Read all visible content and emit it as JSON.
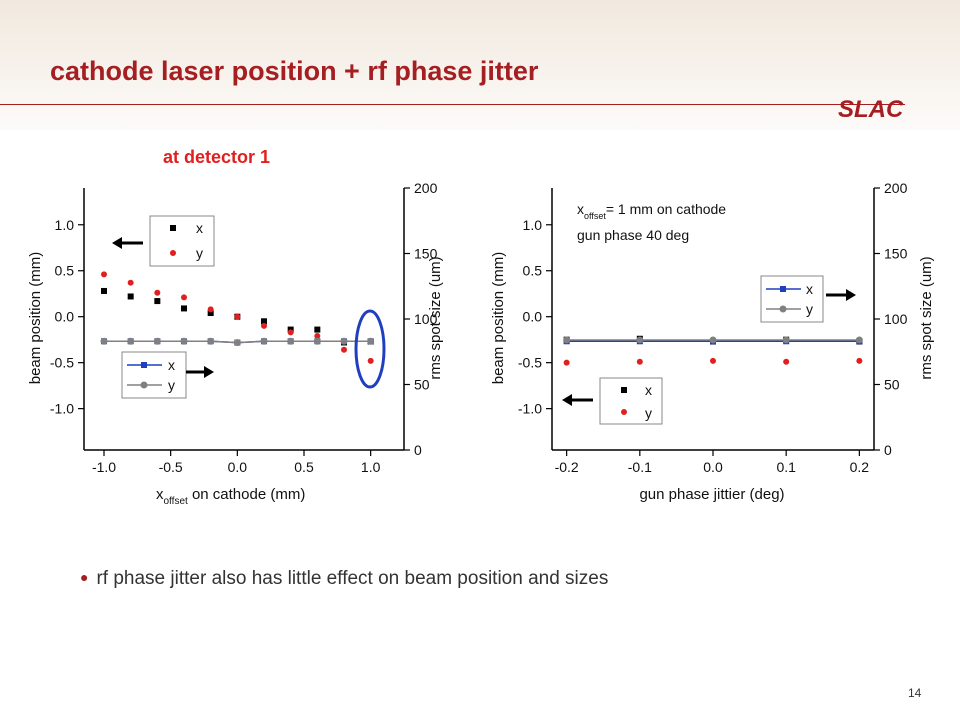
{
  "slide": {
    "title": "cathode laser position + rf phase jitter",
    "subtitle": "at detector 1",
    "logo_text": "SLAC",
    "bullet": "rf phase jitter also has little effect on beam position and sizes",
    "page_number": "14",
    "colors": {
      "title": "#a51e22",
      "subtitle": "#e02020",
      "x_series": "#000000",
      "y_series": "#e02020",
      "size_x": "#1f3fbf",
      "size_y": "#808080",
      "highlight": "#1f3fbf"
    }
  },
  "chart_data": [
    {
      "type": "scatter",
      "xlabel_main": "x",
      "xlabel_sub": "offset",
      "xlabel_rest": " on cathode (mm)",
      "ylabel": "beam position (mm)",
      "y2label": "rms spot size (um)",
      "xlim": [
        -1.15,
        1.25
      ],
      "ylim": [
        -1.45,
        1.4
      ],
      "y2lim": [
        0,
        200
      ],
      "xticks": [
        -1.0,
        -0.5,
        0.0,
        0.5,
        1.0
      ],
      "xtick_labels": [
        "-1.0",
        "-0.5",
        "0.0",
        "0.5",
        "1.0"
      ],
      "yticks": [
        -1.0,
        -0.5,
        0.0,
        0.5,
        1.0
      ],
      "ytick_labels": [
        "-1.0",
        "-0.5",
        "0.0",
        "0.5",
        "1.0"
      ],
      "y2ticks": [
        0,
        50,
        100,
        150,
        200
      ],
      "y2tick_labels": [
        "0",
        "50",
        "100",
        "150",
        "200"
      ],
      "x": [
        -1.0,
        -0.8,
        -0.6,
        -0.4,
        -0.2,
        0.0,
        0.2,
        0.4,
        0.6,
        0.8,
        1.0
      ],
      "series": [
        {
          "name": "x",
          "axis": "left",
          "marker": "square",
          "values": [
            0.28,
            0.22,
            0.17,
            0.09,
            0.04,
            0.0,
            -0.05,
            -0.14,
            -0.14,
            -0.28,
            -0.27
          ]
        },
        {
          "name": "y",
          "axis": "left",
          "marker": "circle",
          "values": [
            0.46,
            0.37,
            0.26,
            0.21,
            0.08,
            0.0,
            -0.1,
            -0.17,
            -0.21,
            -0.36,
            -0.48
          ]
        },
        {
          "name": "x",
          "axis": "right",
          "marker": "square-line",
          "values": [
            83,
            83,
            83,
            83,
            83,
            82,
            83,
            83,
            83,
            83,
            83
          ]
        },
        {
          "name": "y",
          "axis": "right",
          "marker": "circle-line",
          "values": [
            83,
            83,
            83,
            83,
            83,
            82,
            83,
            83,
            83,
            83,
            83
          ]
        }
      ],
      "legend_left_axis": [
        "x",
        "y"
      ],
      "legend_right_axis": [
        "x",
        "y"
      ],
      "highlight_x": 1.0
    },
    {
      "type": "scatter",
      "xlabel": "gun phase jittier (deg)",
      "ylabel": "beam position (mm)",
      "y2label": "rms spot size (um)",
      "xlim": [
        -0.22,
        0.22
      ],
      "ylim": [
        -1.45,
        1.4
      ],
      "y2lim": [
        0,
        200
      ],
      "xticks": [
        -0.2,
        -0.1,
        0.0,
        0.1,
        0.2
      ],
      "xtick_labels": [
        "-0.2",
        "-0.1",
        "0.0",
        "0.1",
        "0.2"
      ],
      "yticks": [
        -1.0,
        -0.5,
        0.0,
        0.5,
        1.0
      ],
      "ytick_labels": [
        "-1.0",
        "-0.5",
        "0.0",
        "0.5",
        "1.0"
      ],
      "y2ticks": [
        0,
        50,
        100,
        150,
        200
      ],
      "y2tick_labels": [
        "0",
        "50",
        "100",
        "150",
        "200"
      ],
      "x": [
        -0.2,
        -0.1,
        0.0,
        0.1,
        0.2
      ],
      "series": [
        {
          "name": "x",
          "axis": "left",
          "marker": "square",
          "values": [
            -0.25,
            -0.24,
            -0.27,
            -0.25,
            -0.27
          ]
        },
        {
          "name": "y",
          "axis": "left",
          "marker": "circle",
          "values": [
            -0.5,
            -0.49,
            -0.48,
            -0.49,
            -0.48
          ]
        },
        {
          "name": "x",
          "axis": "right",
          "marker": "square-line",
          "values": [
            83,
            83,
            83,
            83,
            83
          ]
        },
        {
          "name": "y",
          "axis": "right",
          "marker": "circle-line",
          "values": [
            84,
            84,
            84,
            84,
            84
          ]
        }
      ],
      "legend_left_axis": [
        "x",
        "y"
      ],
      "legend_right_axis": [
        "x",
        "y"
      ],
      "annotation_line1_main": "x",
      "annotation_line1_sub": "offset",
      "annotation_line1_rest": "= 1 mm on cathode",
      "annotation_line2": "gun phase 40 deg"
    }
  ]
}
